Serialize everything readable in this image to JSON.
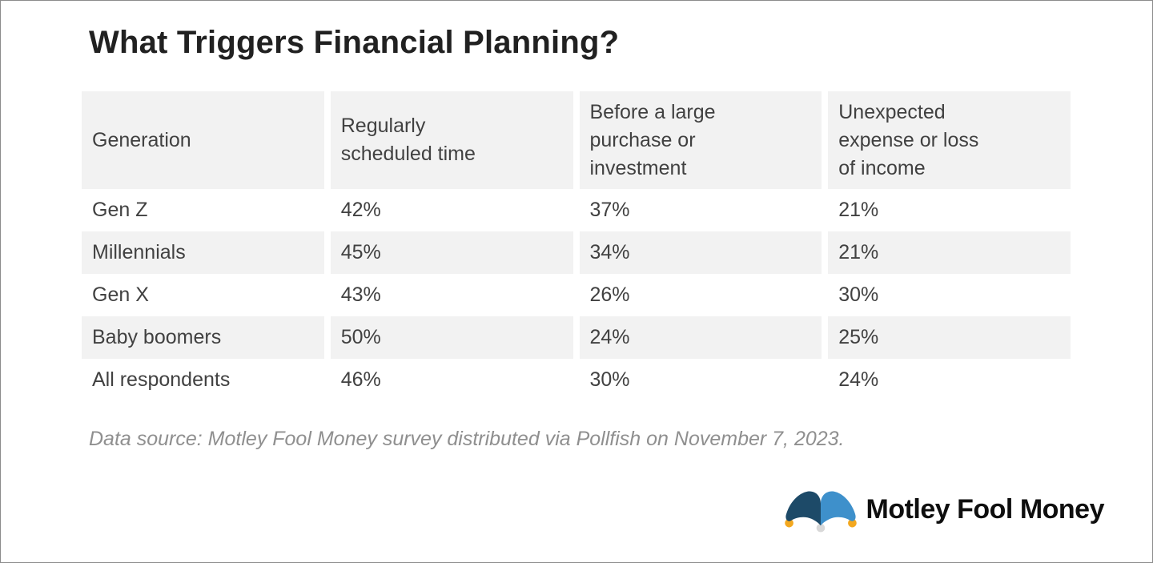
{
  "page": {
    "title": "What Triggers Financial Planning?"
  },
  "table": {
    "columns": [
      "Generation",
      "Regularly scheduled time",
      "Before a large purchase or investment",
      "Unexpected expense or loss of income"
    ],
    "rows": [
      [
        "Gen Z",
        "42%",
        "37%",
        "21%"
      ],
      [
        "Millennials",
        "45%",
        "34%",
        "21%"
      ],
      [
        "Gen X",
        "43%",
        "26%",
        "30%"
      ],
      [
        "Baby boomers",
        "50%",
        "24%",
        "25%"
      ],
      [
        "All respondents",
        "46%",
        "30%",
        "24%"
      ]
    ]
  },
  "chart_data": {
    "type": "table",
    "title": "What Triggers Financial Planning?",
    "columns": [
      "Generation",
      "Regularly scheduled time",
      "Before a large purchase or investment",
      "Unexpected expense or loss of income"
    ],
    "rows": [
      [
        "Gen Z",
        "42%",
        "37%",
        "21%"
      ],
      [
        "Millennials",
        "45%",
        "34%",
        "21%"
      ],
      [
        "Gen X",
        "43%",
        "26%",
        "30%"
      ],
      [
        "Baby boomers",
        "50%",
        "24%",
        "25%"
      ],
      [
        "All respondents",
        "46%",
        "30%",
        "24%"
      ]
    ],
    "units": "percent",
    "source_note": "Data source: Motley Fool Money survey distributed via Pollfish on November 7, 2023."
  },
  "footer": {
    "source_note": "Data source: Motley Fool Money survey distributed via Pollfish on November 7, 2023.",
    "brand_name": "Motley Fool Money"
  },
  "icons": {
    "logo": "jester-hat-icon"
  },
  "colors": {
    "header_bg": "#f2f2f2",
    "alt_row_bg": "#f2f2f2",
    "title_text": "#212121",
    "table_text": "#414141",
    "source_text": "#8f8f8f",
    "logo_navy": "#1d4a68",
    "logo_blue": "#3e90cb",
    "logo_yellow": "#f3a81f",
    "logo_bell_gray": "#d8d8d8",
    "logo_text": "#0e0e0e"
  }
}
